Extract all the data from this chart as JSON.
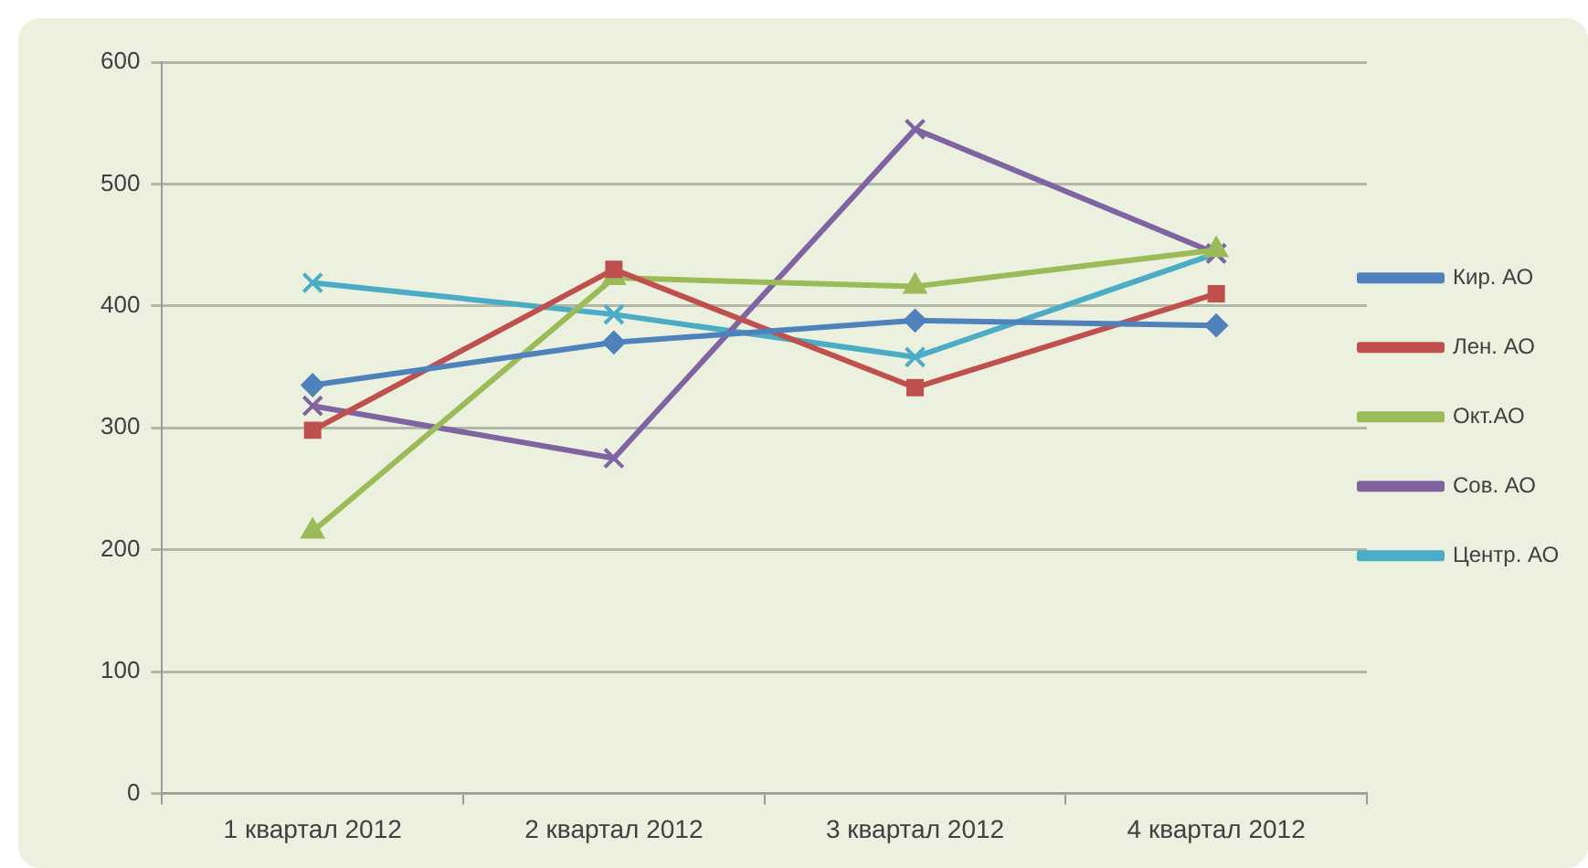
{
  "chart_data": {
    "type": "line",
    "categories": [
      "1 квартал 2012",
      "2 квартал 2012",
      "3 квартал 2012",
      "4 квартал 2012"
    ],
    "series": [
      {
        "name": "Кир. АО",
        "color": "#4f81bd",
        "marker": "diamond",
        "values": [
          335,
          370,
          388,
          384
        ]
      },
      {
        "name": "Лен. АО",
        "color": "#c0504d",
        "marker": "square",
        "values": [
          298,
          430,
          333,
          410
        ]
      },
      {
        "name": "Окт.АО",
        "color": "#9bbb59",
        "marker": "triangle",
        "values": [
          215,
          423,
          416,
          446
        ]
      },
      {
        "name": "Сов. АО",
        "color": "#8064a2",
        "marker": "cross",
        "values": [
          318,
          275,
          545,
          443
        ]
      },
      {
        "name": "Центр. АО",
        "color": "#4bacc6",
        "marker": "cross",
        "values": [
          419,
          393,
          358,
          443
        ]
      }
    ],
    "ylim": [
      0,
      600
    ],
    "yticks": [
      0,
      100,
      200,
      300,
      400,
      500,
      600
    ],
    "grid": "y",
    "legend": "right",
    "line_style": "solid"
  }
}
